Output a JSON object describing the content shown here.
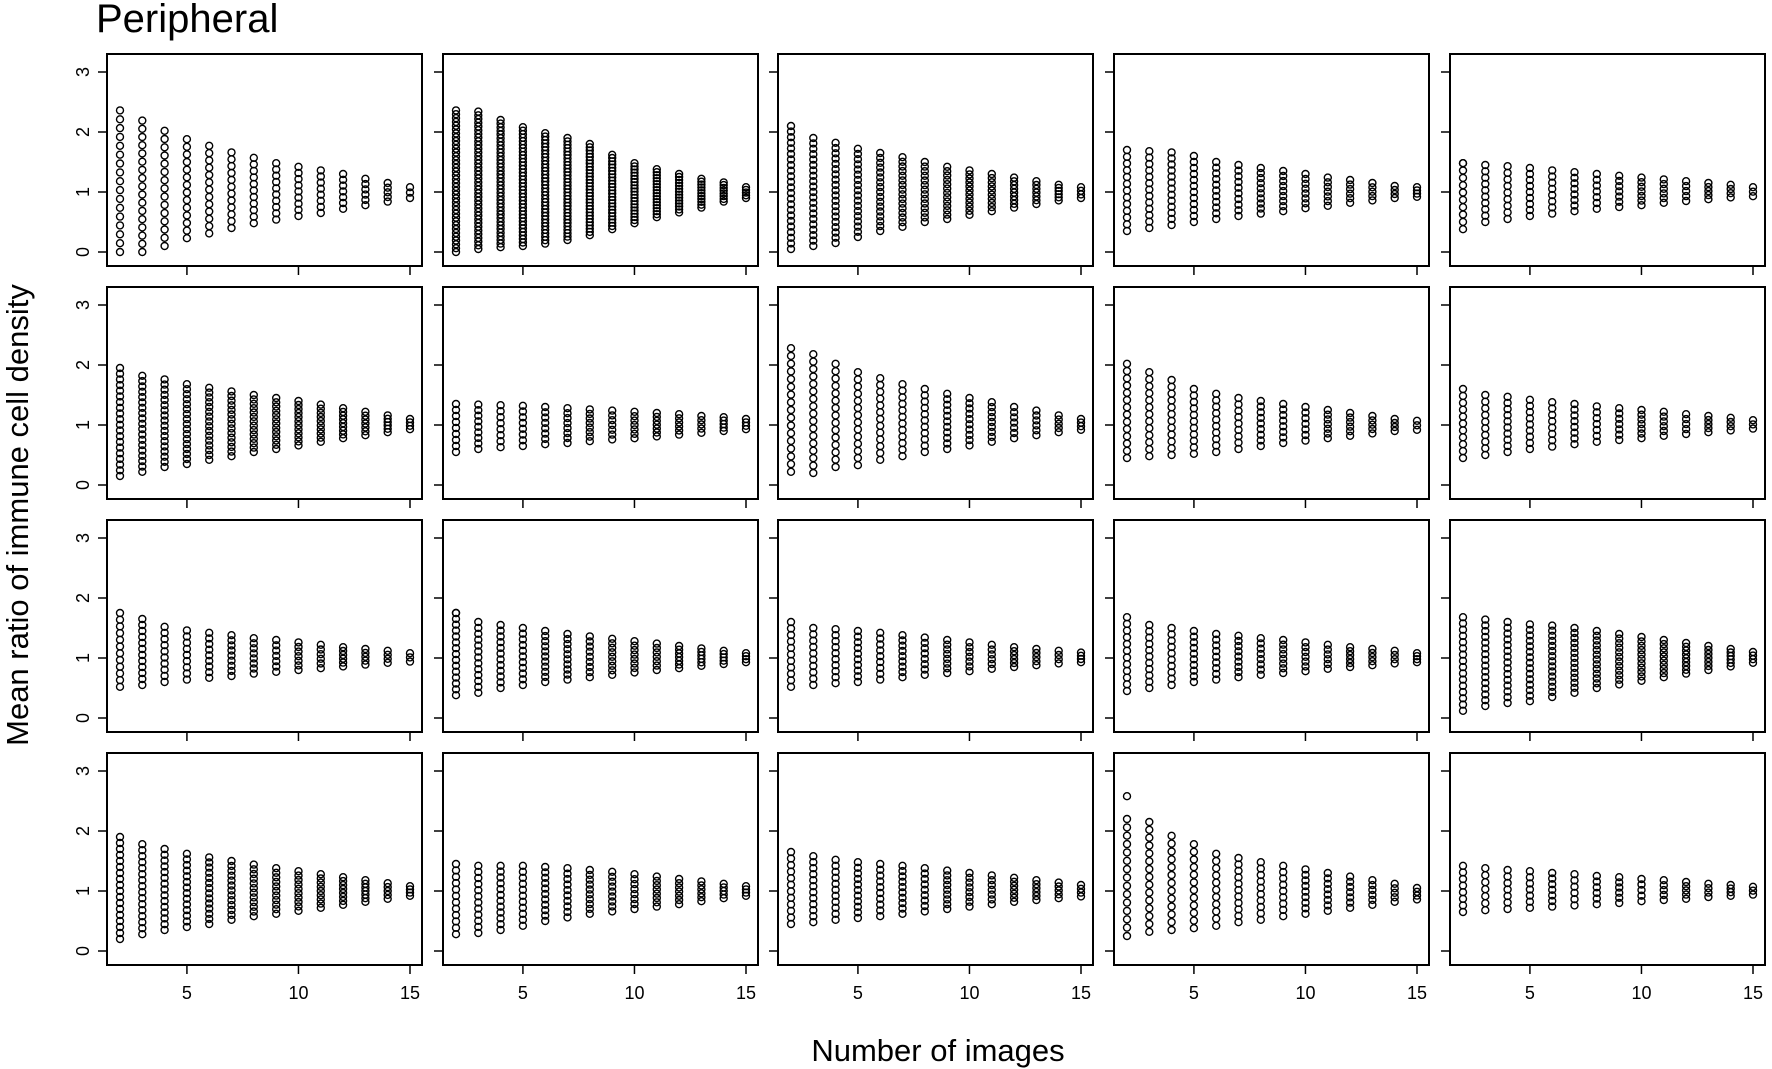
{
  "figure": {
    "title": "Peripheral",
    "xlabel": "Number of images",
    "ylabel": "Mean ratio of immune cell density"
  },
  "style": {
    "point_color": "#000000",
    "background": "#ffffff",
    "marker": "open-circle"
  },
  "chart_data": {
    "type": "scatter",
    "layout": "small-multiples 4 rows x 5 columns",
    "x_ticks": [
      5,
      10,
      15
    ],
    "y_ticks": [
      0,
      1,
      2,
      3
    ],
    "xlim": [
      2,
      15
    ],
    "ylim": [
      0,
      3
    ],
    "x_values": [
      2,
      3,
      4,
      5,
      6,
      7,
      8,
      9,
      10,
      11,
      12,
      13,
      14,
      15
    ],
    "panels": [
      {
        "row": 1,
        "col": 1,
        "density": 0.25,
        "ranges": [
          [
            0.0,
            2.36
          ],
          [
            0.0,
            2.19
          ],
          [
            0.1,
            2.02
          ],
          [
            0.23,
            1.88
          ],
          [
            0.31,
            1.77
          ],
          [
            0.4,
            1.66
          ],
          [
            0.48,
            1.57
          ],
          [
            0.54,
            1.48
          ],
          [
            0.6,
            1.42
          ],
          [
            0.65,
            1.36
          ],
          [
            0.72,
            1.3
          ],
          [
            0.78,
            1.22
          ],
          [
            0.84,
            1.15
          ],
          [
            0.9,
            1.08
          ]
        ]
      },
      {
        "row": 1,
        "col": 2,
        "density": 0.8,
        "ranges": [
          [
            0.0,
            2.36
          ],
          [
            0.05,
            2.34
          ],
          [
            0.08,
            2.2
          ],
          [
            0.1,
            2.08
          ],
          [
            0.14,
            1.98
          ],
          [
            0.2,
            1.9
          ],
          [
            0.28,
            1.8
          ],
          [
            0.38,
            1.62
          ],
          [
            0.48,
            1.48
          ],
          [
            0.58,
            1.38
          ],
          [
            0.66,
            1.3
          ],
          [
            0.74,
            1.22
          ],
          [
            0.84,
            1.16
          ],
          [
            0.9,
            1.08
          ]
        ]
      },
      {
        "row": 1,
        "col": 3,
        "density": 0.6,
        "ranges": [
          [
            0.05,
            2.1
          ],
          [
            0.1,
            1.9
          ],
          [
            0.15,
            1.82
          ],
          [
            0.25,
            1.72
          ],
          [
            0.35,
            1.65
          ],
          [
            0.42,
            1.58
          ],
          [
            0.5,
            1.5
          ],
          [
            0.55,
            1.42
          ],
          [
            0.62,
            1.36
          ],
          [
            0.68,
            1.3
          ],
          [
            0.74,
            1.24
          ],
          [
            0.8,
            1.18
          ],
          [
            0.86,
            1.12
          ],
          [
            0.9,
            1.08
          ]
        ]
      },
      {
        "row": 1,
        "col": 4,
        "density": 0.5,
        "ranges": [
          [
            0.35,
            1.7
          ],
          [
            0.4,
            1.68
          ],
          [
            0.45,
            1.66
          ],
          [
            0.5,
            1.6
          ],
          [
            0.55,
            1.5
          ],
          [
            0.6,
            1.45
          ],
          [
            0.64,
            1.4
          ],
          [
            0.68,
            1.35
          ],
          [
            0.73,
            1.3
          ],
          [
            0.77,
            1.24
          ],
          [
            0.82,
            1.2
          ],
          [
            0.86,
            1.15
          ],
          [
            0.9,
            1.1
          ],
          [
            0.92,
            1.08
          ]
        ]
      },
      {
        "row": 1,
        "col": 5,
        "density": 0.45,
        "ranges": [
          [
            0.38,
            1.48
          ],
          [
            0.5,
            1.45
          ],
          [
            0.55,
            1.43
          ],
          [
            0.6,
            1.4
          ],
          [
            0.64,
            1.36
          ],
          [
            0.68,
            1.33
          ],
          [
            0.72,
            1.3
          ],
          [
            0.75,
            1.27
          ],
          [
            0.78,
            1.24
          ],
          [
            0.82,
            1.21
          ],
          [
            0.85,
            1.18
          ],
          [
            0.88,
            1.15
          ],
          [
            0.91,
            1.12
          ],
          [
            0.93,
            1.08
          ]
        ]
      },
      {
        "row": 2,
        "col": 1,
        "density": 0.6,
        "ranges": [
          [
            0.15,
            1.95
          ],
          [
            0.22,
            1.82
          ],
          [
            0.3,
            1.76
          ],
          [
            0.35,
            1.68
          ],
          [
            0.42,
            1.62
          ],
          [
            0.48,
            1.56
          ],
          [
            0.55,
            1.5
          ],
          [
            0.6,
            1.45
          ],
          [
            0.66,
            1.4
          ],
          [
            0.72,
            1.34
          ],
          [
            0.78,
            1.28
          ],
          [
            0.83,
            1.22
          ],
          [
            0.88,
            1.16
          ],
          [
            0.93,
            1.1
          ]
        ]
      },
      {
        "row": 2,
        "col": 2,
        "density": 0.55,
        "ranges": [
          [
            0.55,
            1.35
          ],
          [
            0.6,
            1.34
          ],
          [
            0.63,
            1.33
          ],
          [
            0.65,
            1.32
          ],
          [
            0.68,
            1.3
          ],
          [
            0.7,
            1.28
          ],
          [
            0.73,
            1.26
          ],
          [
            0.76,
            1.24
          ],
          [
            0.78,
            1.22
          ],
          [
            0.81,
            1.2
          ],
          [
            0.84,
            1.18
          ],
          [
            0.87,
            1.15
          ],
          [
            0.9,
            1.13
          ],
          [
            0.93,
            1.1
          ]
        ]
      },
      {
        "row": 2,
        "col": 3,
        "density": 0.35,
        "ranges": [
          [
            0.22,
            2.28
          ],
          [
            0.2,
            2.18
          ],
          [
            0.3,
            2.02
          ],
          [
            0.33,
            1.88
          ],
          [
            0.42,
            1.78
          ],
          [
            0.48,
            1.68
          ],
          [
            0.55,
            1.6
          ],
          [
            0.6,
            1.52
          ],
          [
            0.66,
            1.45
          ],
          [
            0.72,
            1.38
          ],
          [
            0.78,
            1.3
          ],
          [
            0.83,
            1.24
          ],
          [
            0.88,
            1.16
          ],
          [
            0.92,
            1.1
          ]
        ]
      },
      {
        "row": 2,
        "col": 4,
        "density": 0.4,
        "ranges": [
          [
            0.45,
            2.02
          ],
          [
            0.48,
            1.88
          ],
          [
            0.5,
            1.75
          ],
          [
            0.52,
            1.6
          ],
          [
            0.55,
            1.52
          ],
          [
            0.6,
            1.45
          ],
          [
            0.65,
            1.4
          ],
          [
            0.7,
            1.35
          ],
          [
            0.74,
            1.3
          ],
          [
            0.78,
            1.25
          ],
          [
            0.82,
            1.2
          ],
          [
            0.86,
            1.15
          ],
          [
            0.9,
            1.1
          ],
          [
            0.92,
            1.07
          ]
        ]
      },
      {
        "row": 2,
        "col": 5,
        "density": 0.45,
        "ranges": [
          [
            0.45,
            1.6
          ],
          [
            0.5,
            1.5
          ],
          [
            0.55,
            1.47
          ],
          [
            0.6,
            1.42
          ],
          [
            0.64,
            1.38
          ],
          [
            0.68,
            1.35
          ],
          [
            0.72,
            1.31
          ],
          [
            0.75,
            1.28
          ],
          [
            0.78,
            1.25
          ],
          [
            0.82,
            1.22
          ],
          [
            0.85,
            1.18
          ],
          [
            0.88,
            1.15
          ],
          [
            0.91,
            1.12
          ],
          [
            0.94,
            1.08
          ]
        ]
      },
      {
        "row": 3,
        "col": 1,
        "density": 0.5,
        "ranges": [
          [
            0.52,
            1.75
          ],
          [
            0.55,
            1.65
          ],
          [
            0.6,
            1.52
          ],
          [
            0.64,
            1.46
          ],
          [
            0.67,
            1.42
          ],
          [
            0.7,
            1.38
          ],
          [
            0.74,
            1.33
          ],
          [
            0.77,
            1.3
          ],
          [
            0.8,
            1.26
          ],
          [
            0.83,
            1.22
          ],
          [
            0.86,
            1.18
          ],
          [
            0.89,
            1.15
          ],
          [
            0.92,
            1.12
          ],
          [
            0.94,
            1.08
          ]
        ]
      },
      {
        "row": 3,
        "col": 2,
        "density": 0.55,
        "ranges": [
          [
            0.38,
            1.75
          ],
          [
            0.42,
            1.6
          ],
          [
            0.5,
            1.55
          ],
          [
            0.55,
            1.5
          ],
          [
            0.6,
            1.45
          ],
          [
            0.64,
            1.4
          ],
          [
            0.68,
            1.36
          ],
          [
            0.72,
            1.32
          ],
          [
            0.76,
            1.28
          ],
          [
            0.8,
            1.24
          ],
          [
            0.83,
            1.2
          ],
          [
            0.87,
            1.16
          ],
          [
            0.9,
            1.12
          ],
          [
            0.93,
            1.08
          ]
        ]
      },
      {
        "row": 3,
        "col": 3,
        "density": 0.5,
        "ranges": [
          [
            0.52,
            1.6
          ],
          [
            0.55,
            1.5
          ],
          [
            0.58,
            1.48
          ],
          [
            0.6,
            1.45
          ],
          [
            0.64,
            1.42
          ],
          [
            0.68,
            1.38
          ],
          [
            0.72,
            1.34
          ],
          [
            0.75,
            1.3
          ],
          [
            0.78,
            1.26
          ],
          [
            0.82,
            1.22
          ],
          [
            0.85,
            1.18
          ],
          [
            0.88,
            1.15
          ],
          [
            0.91,
            1.12
          ],
          [
            0.93,
            1.09
          ]
        ]
      },
      {
        "row": 3,
        "col": 4,
        "density": 0.5,
        "ranges": [
          [
            0.45,
            1.68
          ],
          [
            0.5,
            1.55
          ],
          [
            0.55,
            1.5
          ],
          [
            0.6,
            1.45
          ],
          [
            0.64,
            1.4
          ],
          [
            0.68,
            1.37
          ],
          [
            0.72,
            1.33
          ],
          [
            0.75,
            1.3
          ],
          [
            0.78,
            1.26
          ],
          [
            0.82,
            1.22
          ],
          [
            0.85,
            1.18
          ],
          [
            0.88,
            1.15
          ],
          [
            0.91,
            1.12
          ],
          [
            0.93,
            1.08
          ]
        ]
      },
      {
        "row": 3,
        "col": 5,
        "density": 0.55,
        "ranges": [
          [
            0.12,
            1.68
          ],
          [
            0.2,
            1.64
          ],
          [
            0.25,
            1.6
          ],
          [
            0.28,
            1.56
          ],
          [
            0.35,
            1.54
          ],
          [
            0.42,
            1.5
          ],
          [
            0.5,
            1.45
          ],
          [
            0.56,
            1.4
          ],
          [
            0.62,
            1.35
          ],
          [
            0.68,
            1.3
          ],
          [
            0.74,
            1.25
          ],
          [
            0.8,
            1.2
          ],
          [
            0.86,
            1.15
          ],
          [
            0.92,
            1.1
          ]
        ]
      },
      {
        "row": 4,
        "col": 1,
        "density": 0.55,
        "ranges": [
          [
            0.2,
            1.9
          ],
          [
            0.28,
            1.78
          ],
          [
            0.35,
            1.7
          ],
          [
            0.4,
            1.62
          ],
          [
            0.45,
            1.56
          ],
          [
            0.52,
            1.5
          ],
          [
            0.58,
            1.44
          ],
          [
            0.62,
            1.38
          ],
          [
            0.67,
            1.33
          ],
          [
            0.72,
            1.28
          ],
          [
            0.77,
            1.23
          ],
          [
            0.82,
            1.18
          ],
          [
            0.87,
            1.13
          ],
          [
            0.92,
            1.08
          ]
        ]
      },
      {
        "row": 4,
        "col": 2,
        "density": 0.5,
        "ranges": [
          [
            0.28,
            1.45
          ],
          [
            0.3,
            1.42
          ],
          [
            0.35,
            1.42
          ],
          [
            0.42,
            1.42
          ],
          [
            0.5,
            1.4
          ],
          [
            0.56,
            1.38
          ],
          [
            0.62,
            1.35
          ],
          [
            0.66,
            1.32
          ],
          [
            0.7,
            1.28
          ],
          [
            0.74,
            1.24
          ],
          [
            0.78,
            1.2
          ],
          [
            0.83,
            1.16
          ],
          [
            0.88,
            1.12
          ],
          [
            0.92,
            1.08
          ]
        ]
      },
      {
        "row": 4,
        "col": 3,
        "density": 0.5,
        "ranges": [
          [
            0.45,
            1.65
          ],
          [
            0.48,
            1.58
          ],
          [
            0.52,
            1.52
          ],
          [
            0.55,
            1.48
          ],
          [
            0.58,
            1.45
          ],
          [
            0.62,
            1.42
          ],
          [
            0.66,
            1.38
          ],
          [
            0.7,
            1.34
          ],
          [
            0.74,
            1.3
          ],
          [
            0.78,
            1.26
          ],
          [
            0.82,
            1.22
          ],
          [
            0.85,
            1.18
          ],
          [
            0.88,
            1.14
          ],
          [
            0.91,
            1.1
          ]
        ]
      },
      {
        "row": 4,
        "col": 4,
        "density": 0.3,
        "ranges": [
          [
            0.25,
            2.2
          ],
          [
            0.32,
            2.15
          ],
          [
            0.35,
            1.92
          ],
          [
            0.38,
            1.78
          ],
          [
            0.42,
            1.62
          ],
          [
            0.48,
            1.55
          ],
          [
            0.52,
            1.48
          ],
          [
            0.58,
            1.42
          ],
          [
            0.62,
            1.36
          ],
          [
            0.67,
            1.3
          ],
          [
            0.72,
            1.24
          ],
          [
            0.77,
            1.18
          ],
          [
            0.82,
            1.12
          ],
          [
            0.86,
            1.05
          ]
        ]
      },
      {
        "row": 4,
        "col": 5,
        "density": 0.45,
        "ranges": [
          [
            0.65,
            1.42
          ],
          [
            0.68,
            1.38
          ],
          [
            0.7,
            1.35
          ],
          [
            0.72,
            1.33
          ],
          [
            0.74,
            1.3
          ],
          [
            0.76,
            1.28
          ],
          [
            0.78,
            1.25
          ],
          [
            0.8,
            1.23
          ],
          [
            0.83,
            1.2
          ],
          [
            0.85,
            1.18
          ],
          [
            0.87,
            1.15
          ],
          [
            0.9,
            1.12
          ],
          [
            0.92,
            1.1
          ],
          [
            0.94,
            1.07
          ]
        ]
      }
    ],
    "outliers": [
      {
        "panel": [
          1,
          5
        ],
        "x": 2,
        "y": 1.48
      },
      {
        "panel": [
          3,
          2
        ],
        "x": 2,
        "y": 1.75
      },
      {
        "panel": [
          4,
          4
        ],
        "x": 2,
        "y": 2.58
      }
    ]
  }
}
